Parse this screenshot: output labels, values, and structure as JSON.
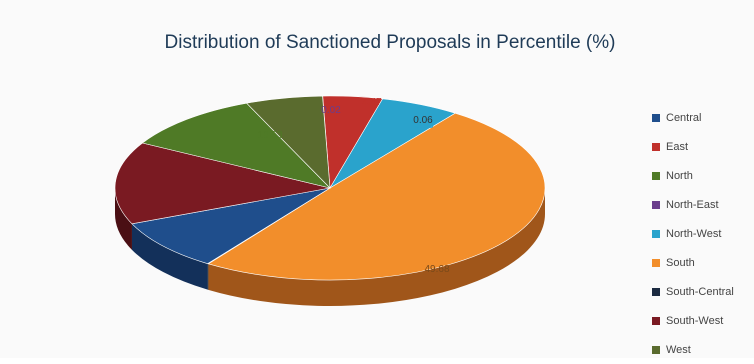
{
  "chart_data": {
    "type": "pie",
    "title": "Distribution of Sanctioned Proposals in Percentile (%)",
    "legend_position": "right",
    "slices": [
      {
        "name": "Central",
        "value": 9.0,
        "label": "",
        "color": "#1f4e8c",
        "side": "#13305a",
        "label_color": "#ffffff"
      },
      {
        "name": "East",
        "value": 4.47,
        "label": "4.47",
        "color": "#c0302b",
        "side": "#7a1d1a",
        "label_color": "#c0302b"
      },
      {
        "name": "North",
        "value": 10.53,
        "label": "10.53",
        "color": "#4f7a26",
        "side": "#2f4a16",
        "label_color": "#4f7a26"
      },
      {
        "name": "North-East",
        "value": 0.02,
        "label": "0.02",
        "color": "#6a3d8c",
        "side": "#3f2454",
        "label_color": "#6a3d8c"
      },
      {
        "name": "North-West",
        "value": 5.96,
        "label": "5.96",
        "color": "#2aa3cc",
        "side": "#186480",
        "label_color": "#2aa3cc"
      },
      {
        "name": "South",
        "value": 49.68,
        "label": "49.68",
        "color": "#f28e2b",
        "side": "#a0561a",
        "label_color": "#7a4a1a"
      },
      {
        "name": "South-Central",
        "value": 0.06,
        "label": "0.06",
        "color": "#1b2a40",
        "side": "#0d1520",
        "label_color": "#333333"
      },
      {
        "name": "South-West",
        "value": 14.5,
        "label": "",
        "color": "#7a1a22",
        "side": "#4a0f14",
        "label_color": "#ffffff"
      },
      {
        "name": "West",
        "value": 5.78,
        "label": "",
        "color": "#5a6b2e",
        "side": "#36401b",
        "label_color": "#ffffff"
      }
    ]
  }
}
